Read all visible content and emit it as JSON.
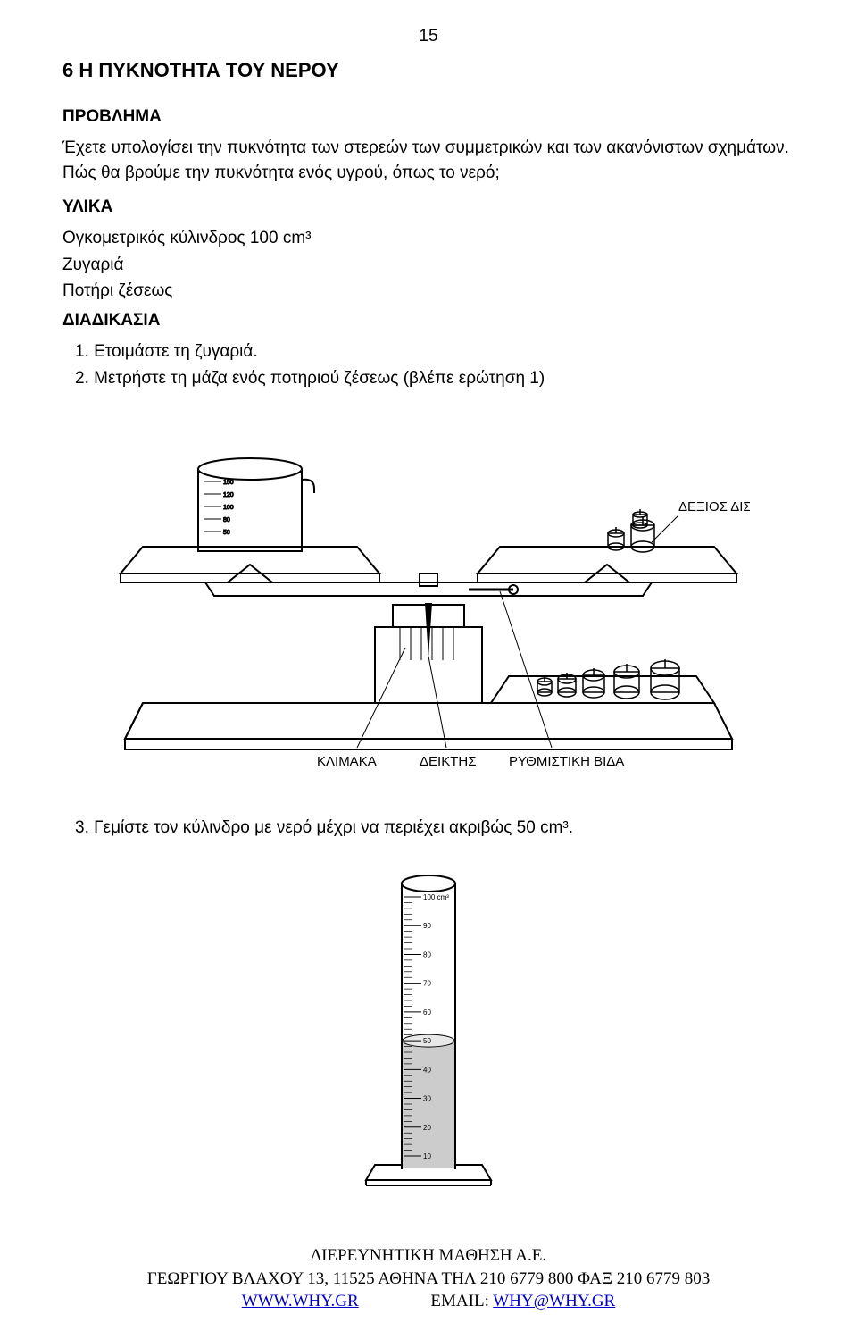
{
  "page_number": "15",
  "title": "6 Η ΠΥΚΝΟΤΗΤΑ ΤΟΥ ΝΕΡΟΥ",
  "headings": {
    "problem": "ΠΡΟΒΛΗΜΑ",
    "materials": "ΥΛΙΚΑ",
    "procedure": "ΔΙΑΔΙΚΑΣΙΑ"
  },
  "problem_text": "Έχετε υπολογίσει την πυκνότητα των στερεών των συμμετρικών και των ακανόνιστων σχημάτων. Πώς θα βρούμε την πυκνότητα ενός υγρού, όπως το νερό;",
  "materials": {
    "item1": "Ογκομετρικός κύλινδρος 100 cm³",
    "item2": "Ζυγαριά",
    "item3": "Ποτήρι ζέσεως"
  },
  "steps": {
    "s1_num": "1.",
    "s1": "Ετοιμάστε τη ζυγαριά.",
    "s2_num": "2.",
    "s2": "Μετρήστε τη μάζα ενός ποτηριού ζέσεως (βλέπε ερώτηση 1)",
    "s3_num": "3.",
    "s3": "Γεμίστε τον κύλινδρο με νερό μέχρι να περιέχει ακριβώς 50 cm³."
  },
  "figure_labels": {
    "right_pan": "ΔΕΞΙΟΣ ΔΙΣΚΟΣ",
    "scale": "ΚΛΙΜΑΚΑ",
    "pointer": "ΔΕΙΚΤΗΣ",
    "screw": "ΡΥΘΜΙΣΤΙΚΗ ΒΙΔΑ"
  },
  "beaker_lines": [
    "150",
    "120",
    "100",
    "80",
    "50"
  ],
  "cylinder": {
    "marks": [
      "100 cm³",
      "90",
      "80",
      "70",
      "60",
      "50",
      "40",
      "30",
      "20",
      "10"
    ],
    "fill_top_index": 5
  },
  "footer": {
    "line1": "ΔΙΕΡΕΥΝΗΤΙΚΗ ΜΑΘΗΣΗ Α.Ε.",
    "line2_pre": "ΓΕΩΡΓΙΟΥ ΒΛΑΧΟΥ 13, 11525 ΑΘΗΝΑ ΤΗΛ 210 6779 800 ΦΑΞ 210 6779 803",
    "www_label": "WWW.WHY.GR",
    "spacer": "               ",
    "email_label": "EMAIL: ",
    "email_link": "WHY@WHY.GR"
  },
  "colors": {
    "text": "#000000",
    "link": "#0000cc",
    "bg": "#ffffff",
    "fill_light": "#f2f2f2",
    "fill_mid": "#cccccc",
    "stroke": "#000000"
  }
}
